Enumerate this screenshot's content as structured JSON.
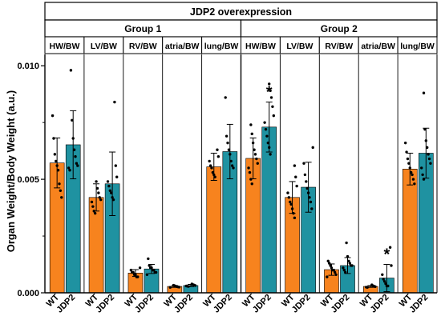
{
  "chart_data": {
    "type": "bar",
    "title": "JDP2 overexpression",
    "ylabel": "Organ Weight/Body Weight (a.u.)",
    "ylim": [
      0,
      0.0105
    ],
    "yticks": [
      "0.000",
      "0.005",
      "0.010"
    ],
    "ytick_values": [
      0,
      0.005,
      0.01
    ],
    "groups": [
      "Group 1",
      "Group 2"
    ],
    "organs": [
      "HW/BW",
      "LV/BW",
      "RV/BW",
      "atria/BW",
      "lung/BW"
    ],
    "genotypes": [
      "WT",
      "JDP2"
    ],
    "significance_marker": "*",
    "colors": {
      "WT": "#f7831e",
      "JDP2": "#1f92a1"
    },
    "bars": [
      {
        "group": "Group 1",
        "organ": "HW/BW",
        "genotype": "WT",
        "mean": 0.00572,
        "sd": 0.0011,
        "sig": false,
        "points": [
          0.0078,
          0.0068,
          0.0061,
          0.0058,
          0.0056,
          0.0054,
          0.0048,
          0.0045,
          0.0042
        ]
      },
      {
        "group": "Group 1",
        "organ": "HW/BW",
        "genotype": "JDP2",
        "mean": 0.00652,
        "sd": 0.0015,
        "sig": false,
        "points": [
          0.0098,
          0.0076,
          0.0068,
          0.0063,
          0.006,
          0.0057,
          0.0056,
          0.0055,
          0.0054
        ]
      },
      {
        "group": "Group 1",
        "organ": "LV/BW",
        "genotype": "WT",
        "mean": 0.0042,
        "sd": 0.0006,
        "sig": false,
        "points": [
          0.0049,
          0.0046,
          0.0044,
          0.0042,
          0.0041,
          0.004,
          0.0038,
          0.0036,
          0.0035
        ]
      },
      {
        "group": "Group 1",
        "organ": "LV/BW",
        "genotype": "JDP2",
        "mean": 0.0048,
        "sd": 0.0014,
        "sig": false,
        "points": [
          0.0084,
          0.0056,
          0.0051,
          0.0049,
          0.0047,
          0.0045,
          0.0044,
          0.0042,
          0.0041
        ]
      },
      {
        "group": "Group 1",
        "organ": "RV/BW",
        "genotype": "WT",
        "mean": 0.00087,
        "sd": 0.00015,
        "sig": false,
        "points": [
          0.0011,
          0.001,
          0.0009,
          0.0009,
          0.0008,
          0.0008,
          0.0007,
          0.0007
        ]
      },
      {
        "group": "Group 1",
        "organ": "RV/BW",
        "genotype": "JDP2",
        "mean": 0.00105,
        "sd": 0.0002,
        "sig": false,
        "points": [
          0.0015,
          0.0012,
          0.0011,
          0.0011,
          0.001,
          0.001,
          0.0009,
          0.0009,
          0.0008
        ]
      },
      {
        "group": "Group 1",
        "organ": "atria/BW",
        "genotype": "WT",
        "mean": 0.00028,
        "sd": 4e-05,
        "sig": false,
        "points": [
          0.00033,
          0.00031,
          0.00029,
          0.00027,
          0.00026,
          0.00025,
          0.00024
        ]
      },
      {
        "group": "Group 1",
        "organ": "atria/BW",
        "genotype": "JDP2",
        "mean": 0.00032,
        "sd": 5e-05,
        "sig": false,
        "points": [
          0.00039,
          0.00036,
          0.00034,
          0.00032,
          0.0003,
          0.00029,
          0.00028
        ]
      },
      {
        "group": "Group 1",
        "organ": "lung/BW",
        "genotype": "WT",
        "mean": 0.00555,
        "sd": 0.0006,
        "sig": false,
        "points": [
          0.0063,
          0.006,
          0.0058,
          0.0056,
          0.0055,
          0.0053,
          0.0052,
          0.0051
        ]
      },
      {
        "group": "Group 1",
        "organ": "lung/BW",
        "genotype": "JDP2",
        "mean": 0.00622,
        "sd": 0.0012,
        "sig": false,
        "points": [
          0.0086,
          0.0069,
          0.0066,
          0.0063,
          0.0061,
          0.0058,
          0.0056,
          0.0055
        ]
      },
      {
        "group": "Group 2",
        "organ": "HW/BW",
        "genotype": "WT",
        "mean": 0.00592,
        "sd": 0.0009,
        "sig": false,
        "points": [
          0.0074,
          0.007,
          0.0066,
          0.0063,
          0.0061,
          0.0059,
          0.0057,
          0.0055,
          0.0053,
          0.005,
          0.0048
        ]
      },
      {
        "group": "Group 2",
        "organ": "HW/BW",
        "genotype": "JDP2",
        "mean": 0.0073,
        "sd": 0.0011,
        "sig": true,
        "points": [
          0.0092,
          0.0089,
          0.0086,
          0.0082,
          0.0078,
          0.0075,
          0.0072,
          0.0069,
          0.0066,
          0.0064,
          0.0061
        ]
      },
      {
        "group": "Group 2",
        "organ": "LV/BW",
        "genotype": "WT",
        "mean": 0.0042,
        "sd": 0.0007,
        "sig": false,
        "points": [
          0.0056,
          0.0051,
          0.0047,
          0.0044,
          0.0042,
          0.004,
          0.0039,
          0.0037,
          0.0035,
          0.0033
        ]
      },
      {
        "group": "Group 2",
        "organ": "LV/BW",
        "genotype": "JDP2",
        "mean": 0.00465,
        "sd": 0.0011,
        "sig": false,
        "points": [
          0.0064,
          0.0057,
          0.0052,
          0.0049,
          0.0046,
          0.0044,
          0.0042,
          0.004,
          0.0037
        ]
      },
      {
        "group": "Group 2",
        "organ": "RV/BW",
        "genotype": "WT",
        "mean": 0.00102,
        "sd": 0.00025,
        "sig": false,
        "points": [
          0.0014,
          0.0013,
          0.0012,
          0.0011,
          0.001,
          0.001,
          0.0009,
          0.0008,
          0.0007
        ]
      },
      {
        "group": "Group 2",
        "organ": "RV/BW",
        "genotype": "JDP2",
        "mean": 0.0012,
        "sd": 0.00035,
        "sig": false,
        "points": [
          0.0022,
          0.0016,
          0.0014,
          0.0013,
          0.0012,
          0.0012,
          0.0011,
          0.001,
          0.0009
        ]
      },
      {
        "group": "Group 2",
        "organ": "atria/BW",
        "genotype": "WT",
        "mean": 0.00028,
        "sd": 4e-05,
        "sig": false,
        "points": [
          0.00035,
          0.00031,
          0.00029,
          0.00027,
          0.00025,
          0.00024
        ]
      },
      {
        "group": "Group 2",
        "organ": "atria/BW",
        "genotype": "JDP2",
        "mean": 0.00065,
        "sd": 0.0006,
        "sig": true,
        "points": [
          0.002,
          0.0012,
          0.0008,
          0.0006,
          0.0005,
          0.0004,
          0.0003,
          0.0003
        ]
      },
      {
        "group": "Group 2",
        "organ": "lung/BW",
        "genotype": "WT",
        "mean": 0.00545,
        "sd": 0.0007,
        "sig": false,
        "points": [
          0.0066,
          0.0062,
          0.0059,
          0.0057,
          0.0055,
          0.0053,
          0.0052,
          0.005,
          0.0048
        ]
      },
      {
        "group": "Group 2",
        "organ": "lung/BW",
        "genotype": "JDP2",
        "mean": 0.00615,
        "sd": 0.0011,
        "sig": false,
        "points": [
          0.0088,
          0.0072,
          0.0067,
          0.0064,
          0.0061,
          0.0059,
          0.0057,
          0.0055,
          0.0052,
          0.005
        ]
      }
    ]
  }
}
